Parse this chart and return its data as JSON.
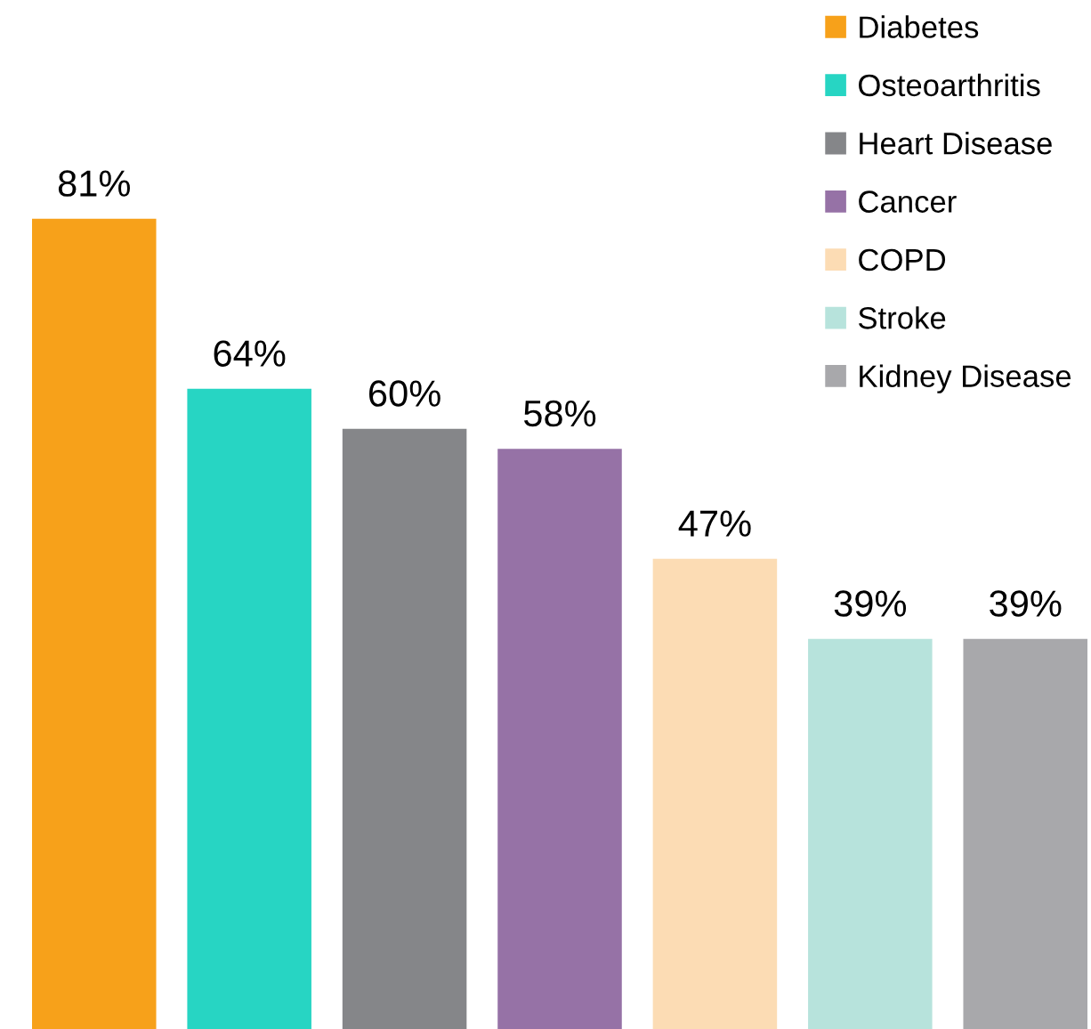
{
  "chart_data": {
    "type": "bar",
    "categories": [
      null
    ],
    "series": [
      {
        "name": "Diabetes",
        "color": "#f7a11a",
        "values": [
          81
        ],
        "value_labels": [
          "81%"
        ]
      },
      {
        "name": "Osteoarthritis",
        "color": "#27d5c3",
        "values": [
          64
        ],
        "value_labels": [
          "64%"
        ]
      },
      {
        "name": "Heart Disease",
        "color": "#858689",
        "values": [
          60
        ],
        "value_labels": [
          "60%"
        ]
      },
      {
        "name": "Cancer",
        "color": "#9672a6",
        "values": [
          58
        ],
        "value_labels": [
          "58%"
        ]
      },
      {
        "name": "COPD",
        "color": "#fcdcb4",
        "values": [
          47
        ],
        "value_labels": [
          "47%"
        ]
      },
      {
        "name": "Stroke",
        "color": "#b7e3dc",
        "values": [
          39
        ],
        "value_labels": [
          "39%"
        ]
      },
      {
        "name": "Kidney Disease",
        "color": "#a8a8ab",
        "values": [
          39
        ],
        "value_labels": [
          "39%"
        ]
      }
    ],
    "legend": "top right",
    "grid": false
  }
}
